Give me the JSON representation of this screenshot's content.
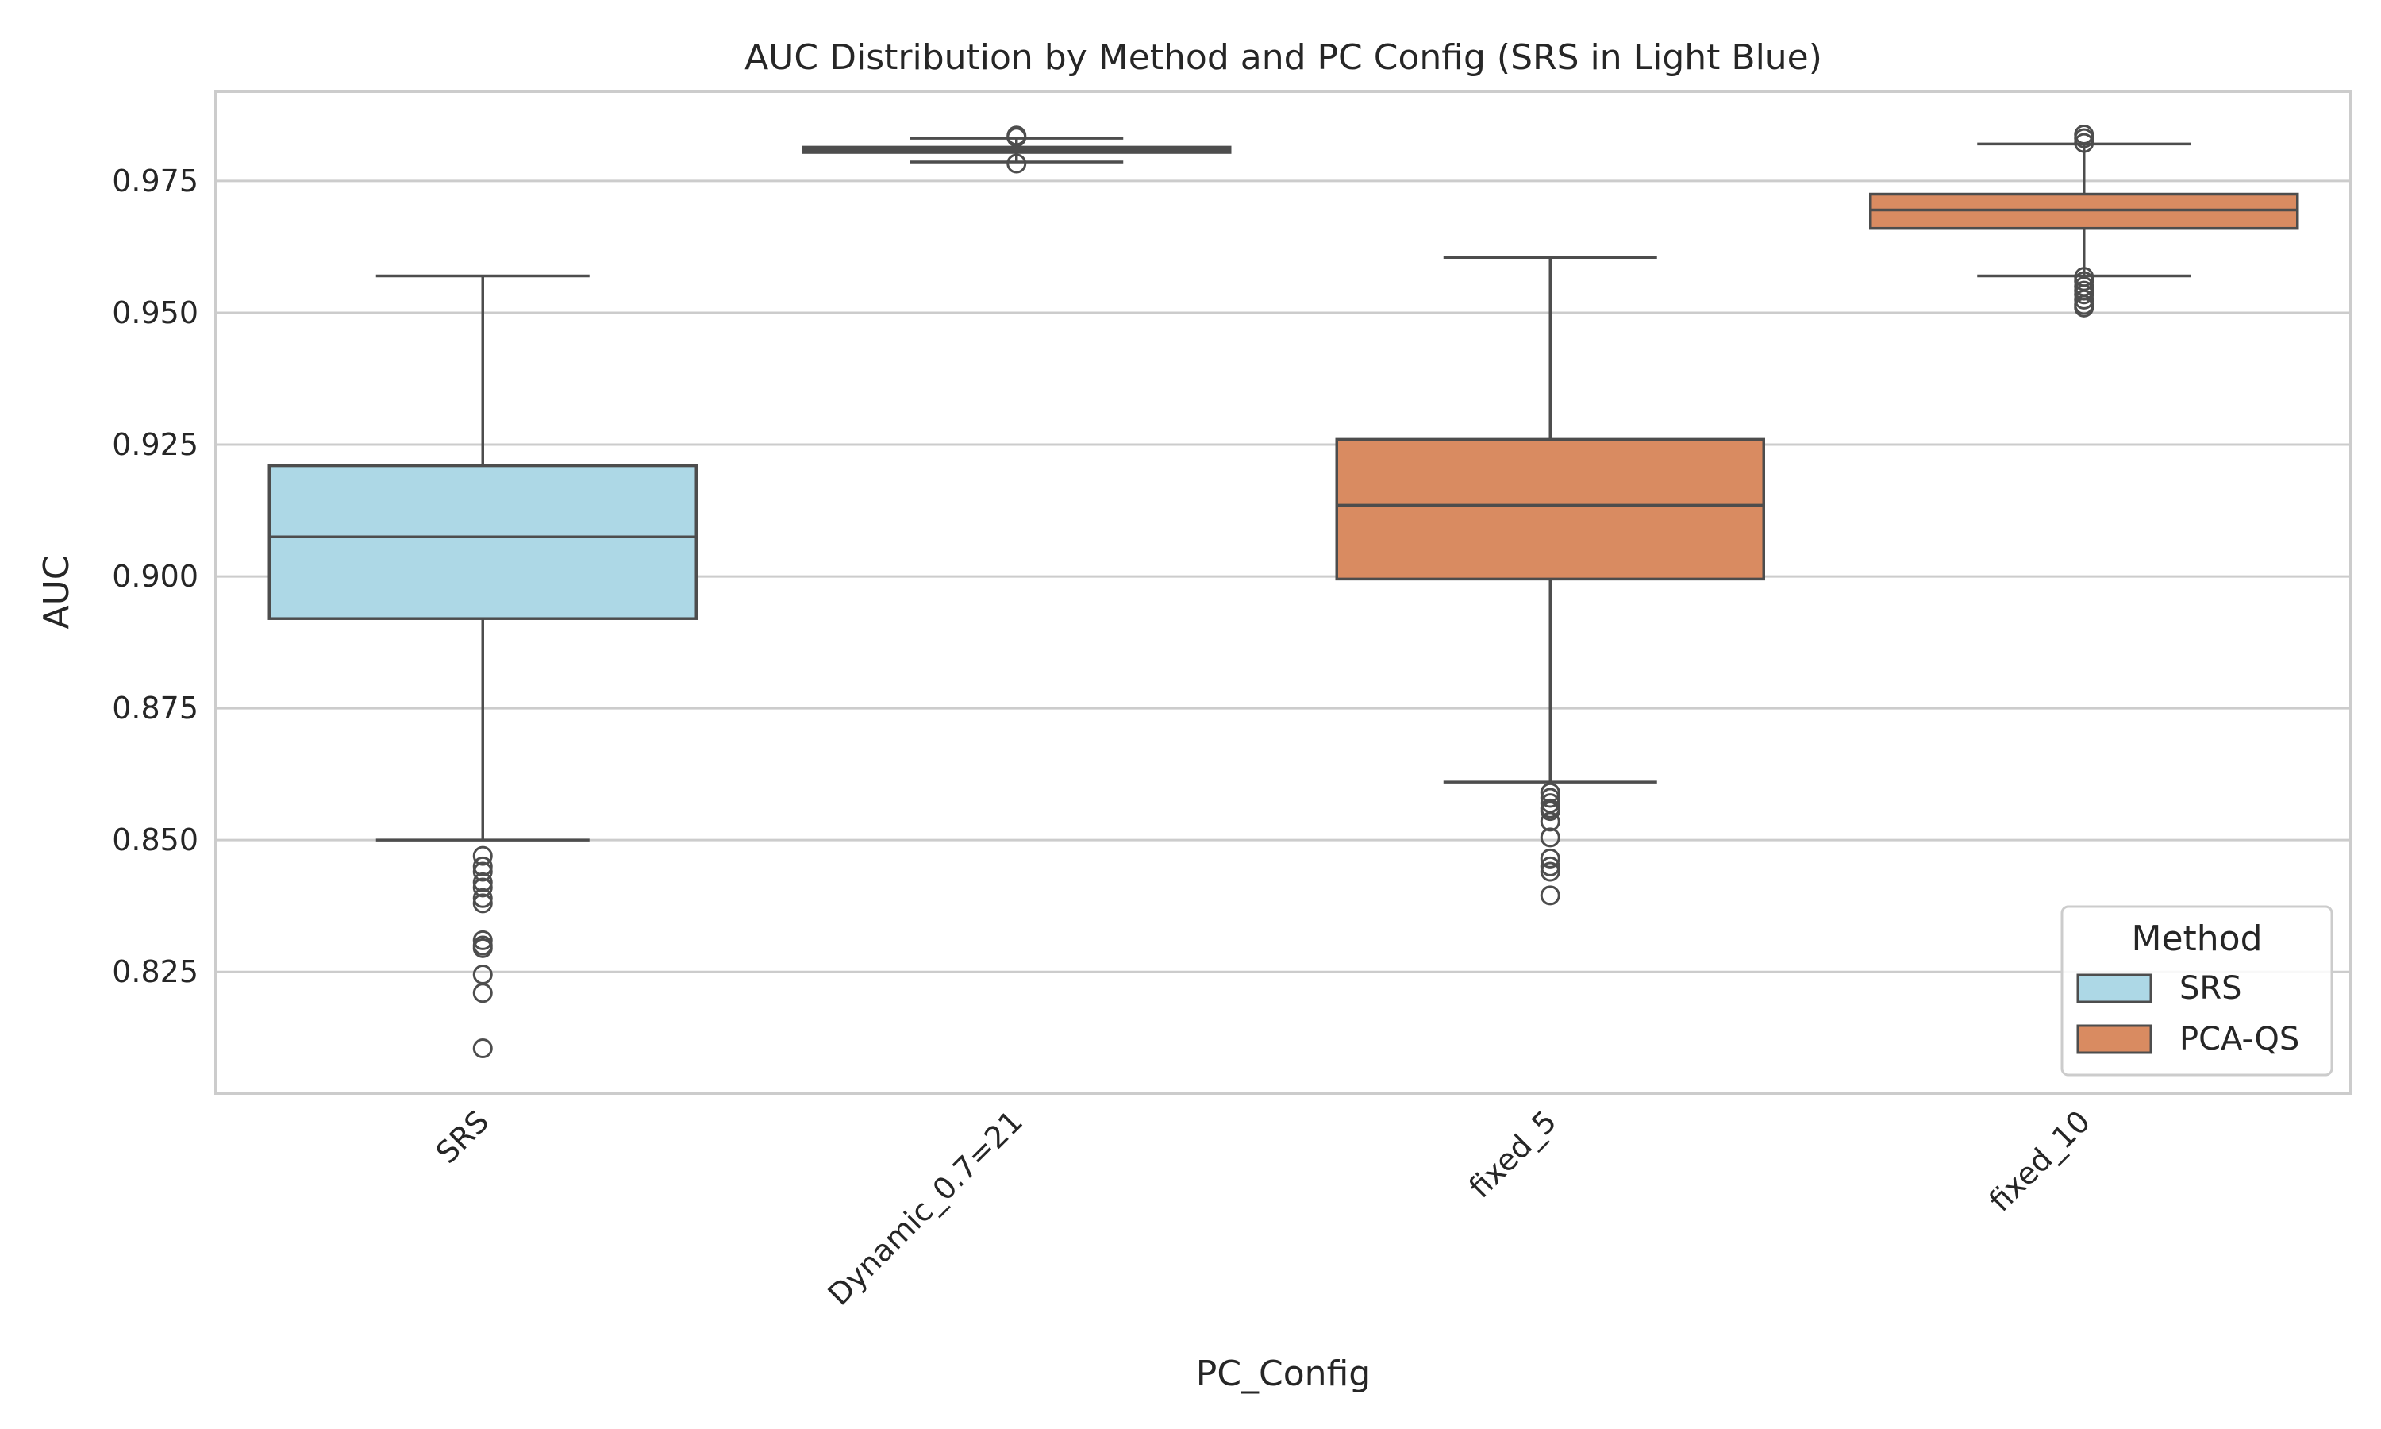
{
  "chart_data": {
    "type": "box",
    "title": "AUC Distribution by Method and PC Config (SRS in Light Blue)",
    "xlabel": "PC_Config",
    "ylabel": "AUC",
    "ylim": [
      0.802,
      0.992
    ],
    "yticks": [
      0.825,
      0.85,
      0.875,
      0.9,
      0.925,
      0.95,
      0.975
    ],
    "ytick_labels": [
      "0.825",
      "0.850",
      "0.875",
      "0.900",
      "0.925",
      "0.950",
      "0.975"
    ],
    "grid": true,
    "legend": {
      "title": "Method",
      "placement": "lower-right",
      "entries": [
        {
          "name": "SRS",
          "color": "#add8e6"
        },
        {
          "name": "PCA-QS",
          "color": "#d98b61"
        }
      ]
    },
    "categories": [
      "SRS",
      "Dynamic_0.7=21",
      "fixed_5",
      "fixed_10"
    ],
    "boxes": [
      {
        "category": "SRS",
        "method": "SRS",
        "whisker_low": 0.85,
        "q1": 0.892,
        "median": 0.9075,
        "q3": 0.921,
        "whisker_high": 0.957,
        "outliers": [
          0.847,
          0.845,
          0.844,
          0.842,
          0.841,
          0.839,
          0.838,
          0.831,
          0.83,
          0.8295,
          0.8245,
          0.821,
          0.8105
        ]
      },
      {
        "category": "Dynamic_0.7=21",
        "method": "PCA-QS",
        "whisker_low": 0.9786,
        "q1": 0.9804,
        "median": 0.9809,
        "q3": 0.9814,
        "whisker_high": 0.9831,
        "outliers": [
          0.9836,
          0.9833,
          0.9783
        ]
      },
      {
        "category": "fixed_5",
        "method": "PCA-QS",
        "whisker_low": 0.861,
        "q1": 0.8995,
        "median": 0.9135,
        "q3": 0.926,
        "whisker_high": 0.9605,
        "outliers": [
          0.859,
          0.858,
          0.857,
          0.856,
          0.8555,
          0.8535,
          0.8505,
          0.8465,
          0.845,
          0.844,
          0.8395
        ]
      },
      {
        "category": "fixed_10",
        "method": "PCA-QS",
        "whisker_low": 0.957,
        "q1": 0.966,
        "median": 0.9695,
        "q3": 0.9725,
        "whisker_high": 0.982,
        "outliers": [
          0.9838,
          0.9831,
          0.9822,
          0.9568,
          0.956,
          0.955,
          0.9542,
          0.9535,
          0.9525,
          0.9515,
          0.951
        ]
      }
    ]
  }
}
